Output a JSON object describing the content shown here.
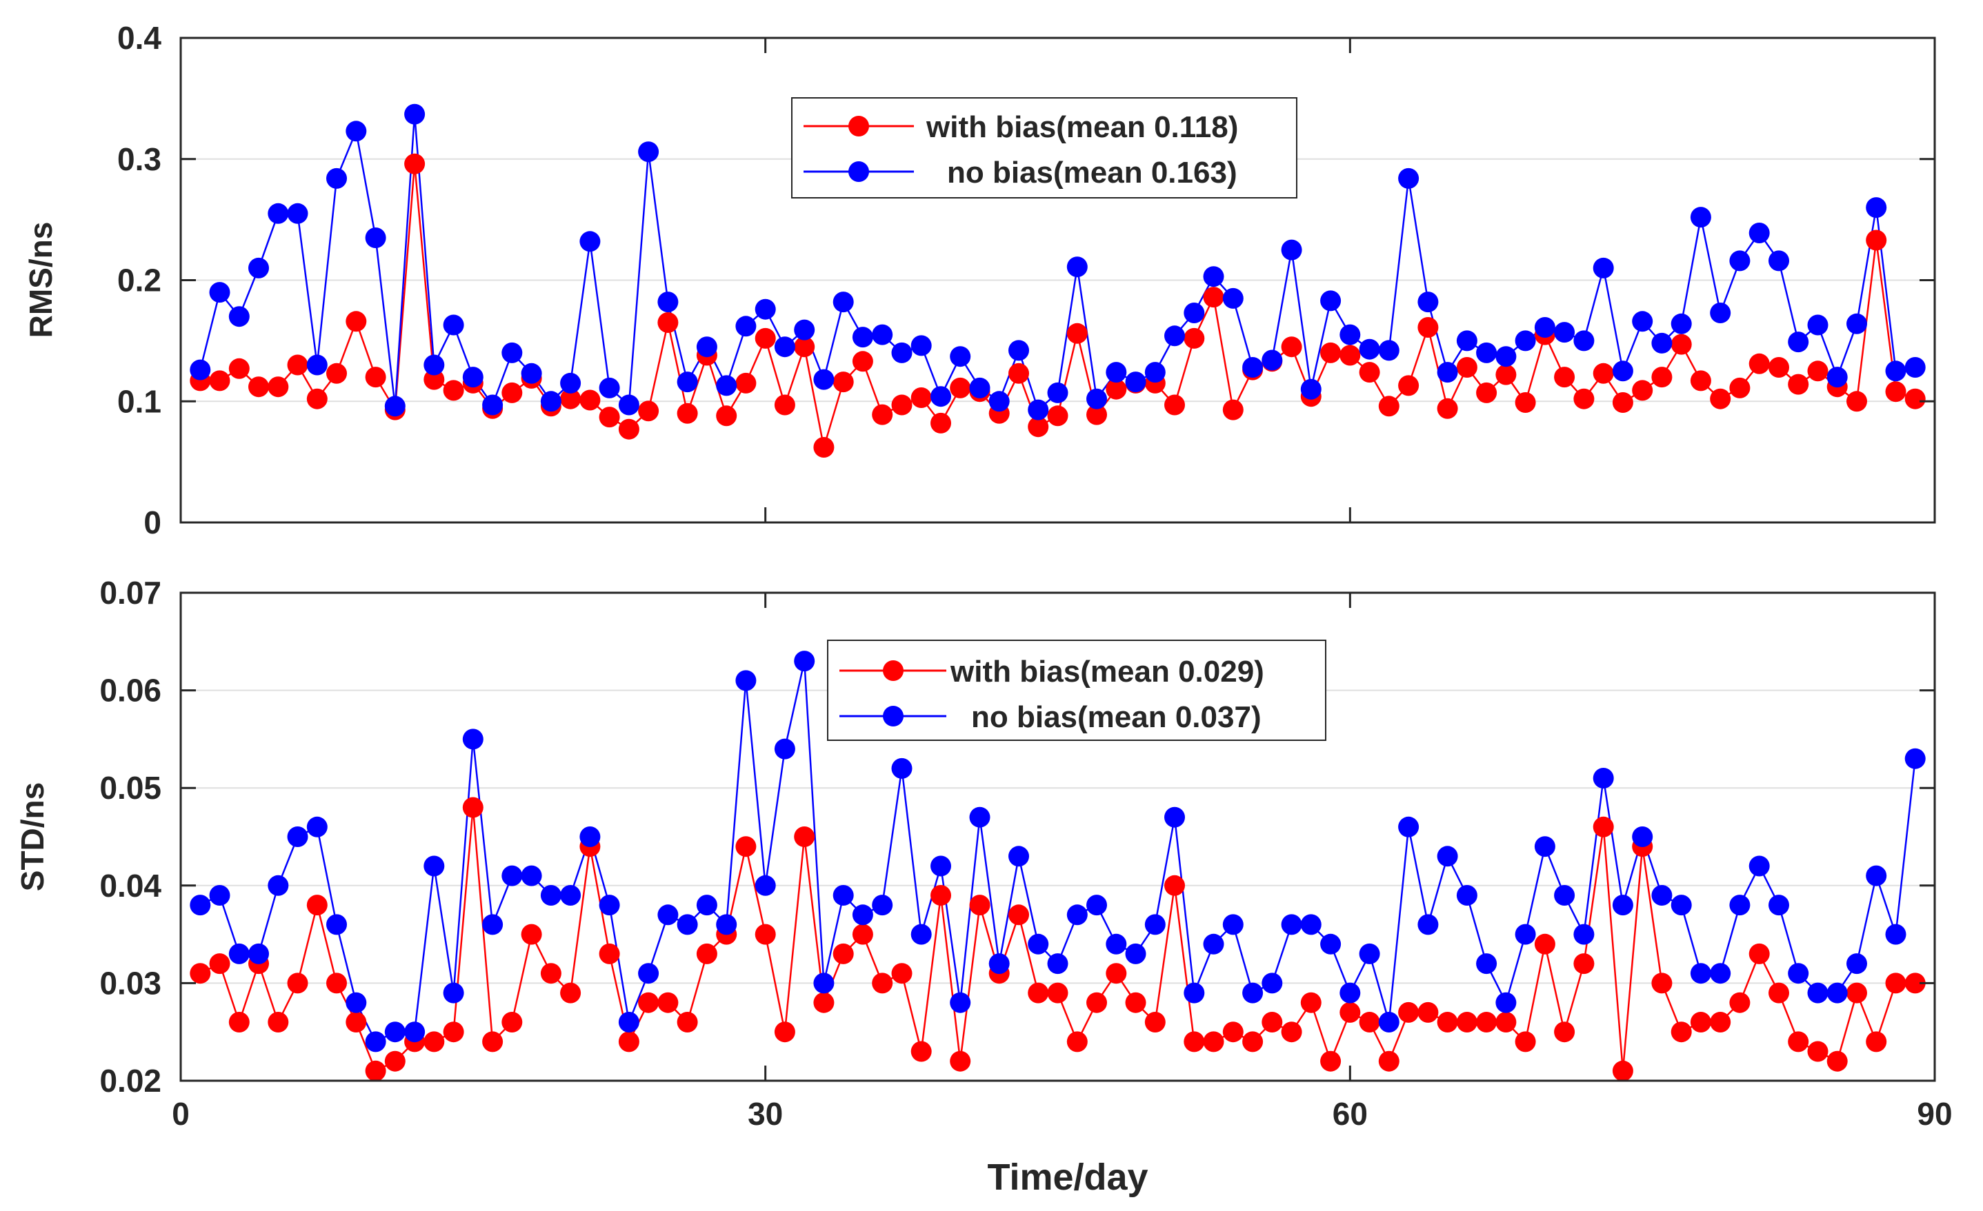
{
  "chart_data": [
    {
      "type": "line",
      "ylabel": "RMS/ns",
      "xlabel": "",
      "xlim": [
        0,
        90
      ],
      "ylim": [
        0,
        0.4
      ],
      "xticks": [
        0,
        30,
        60,
        90
      ],
      "yticks": [
        0,
        0.1,
        0.2,
        0.3,
        0.4
      ],
      "xtick_labels": [
        "",
        "",
        "",
        ""
      ],
      "ytick_labels": [
        "0",
        "0.1",
        "0.2",
        "0.3",
        "0.4"
      ],
      "grid": true,
      "legend_position": "top-center",
      "x": [
        1,
        2,
        3,
        4,
        5,
        6,
        7,
        8,
        9,
        10,
        11,
        12,
        13,
        14,
        15,
        16,
        17,
        18,
        19,
        20,
        21,
        22,
        23,
        24,
        25,
        26,
        27,
        28,
        29,
        30,
        31,
        32,
        33,
        34,
        35,
        36,
        37,
        38,
        39,
        40,
        41,
        42,
        43,
        44,
        45,
        46,
        47,
        48,
        49,
        50,
        51,
        52,
        53,
        54,
        55,
        56,
        57,
        58,
        59,
        60,
        61,
        62,
        63,
        64,
        65,
        66,
        67,
        68,
        69,
        70,
        71,
        72,
        73,
        74,
        75,
        76,
        77,
        78,
        79,
        80,
        81,
        82,
        83,
        84,
        85,
        86,
        87,
        88,
        89
      ],
      "series": [
        {
          "name": "with bias(mean 0.118)",
          "color": "#ff0000",
          "values": [
            0.117,
            0.117,
            0.127,
            0.112,
            0.112,
            0.13,
            0.102,
            0.123,
            0.166,
            0.12,
            0.093,
            0.296,
            0.118,
            0.109,
            0.115,
            0.094,
            0.107,
            0.119,
            0.096,
            0.102,
            0.101,
            0.087,
            0.077,
            0.092,
            0.165,
            0.09,
            0.138,
            0.088,
            0.115,
            0.152,
            0.097,
            0.145,
            0.062,
            0.116,
            0.133,
            0.089,
            0.097,
            0.103,
            0.082,
            0.111,
            0.108,
            0.09,
            0.123,
            0.079,
            0.088,
            0.156,
            0.089,
            0.11,
            0.115,
            0.115,
            0.097,
            0.152,
            0.186,
            0.093,
            0.126,
            0.133,
            0.145,
            0.104,
            0.14,
            0.138,
            0.124,
            0.096,
            0.113,
            0.161,
            0.094,
            0.128,
            0.107,
            0.122,
            0.099,
            0.155,
            0.12,
            0.102,
            0.123,
            0.099,
            0.109,
            0.12,
            0.147,
            0.117,
            0.102,
            0.111,
            0.131,
            0.128,
            0.114,
            0.125,
            0.112,
            0.1,
            0.233,
            0.108,
            0.102
          ]
        },
        {
          "name": "no bias(mean 0.163)",
          "color": "#0000ff",
          "values": [
            0.126,
            0.19,
            0.17,
            0.21,
            0.255,
            0.255,
            0.13,
            0.284,
            0.323,
            0.235,
            0.096,
            0.337,
            0.13,
            0.163,
            0.12,
            0.097,
            0.14,
            0.123,
            0.1,
            0.115,
            0.232,
            0.111,
            0.097,
            0.306,
            0.182,
            0.116,
            0.145,
            0.113,
            0.162,
            0.176,
            0.145,
            0.159,
            0.118,
            0.182,
            0.153,
            0.155,
            0.14,
            0.146,
            0.104,
            0.137,
            0.111,
            0.1,
            0.142,
            0.093,
            0.107,
            0.211,
            0.102,
            0.124,
            0.116,
            0.124,
            0.154,
            0.173,
            0.203,
            0.185,
            0.128,
            0.134,
            0.225,
            0.11,
            0.183,
            0.155,
            0.143,
            0.142,
            0.284,
            0.182,
            0.124,
            0.15,
            0.14,
            0.137,
            0.15,
            0.161,
            0.157,
            0.15,
            0.21,
            0.125,
            0.166,
            0.148,
            0.164,
            0.252,
            0.173,
            0.216,
            0.239,
            0.216,
            0.149,
            0.163,
            0.12,
            0.164,
            0.26,
            0.125,
            0.128
          ]
        }
      ]
    },
    {
      "type": "line",
      "ylabel": "STD/ns",
      "xlabel": "Time/day",
      "xlim": [
        0,
        90
      ],
      "ylim": [
        0.02,
        0.07
      ],
      "xticks": [
        0,
        30,
        60,
        90
      ],
      "yticks": [
        0.02,
        0.03,
        0.04,
        0.05,
        0.06,
        0.07
      ],
      "xtick_labels": [
        "0",
        "30",
        "60",
        "90"
      ],
      "ytick_labels": [
        "0.02",
        "0.03",
        "0.04",
        "0.05",
        "0.06",
        "0.07"
      ],
      "grid": true,
      "legend_position": "top-center",
      "x": [
        1,
        2,
        3,
        4,
        5,
        6,
        7,
        8,
        9,
        10,
        11,
        12,
        13,
        14,
        15,
        16,
        17,
        18,
        19,
        20,
        21,
        22,
        23,
        24,
        25,
        26,
        27,
        28,
        29,
        30,
        31,
        32,
        33,
        34,
        35,
        36,
        37,
        38,
        39,
        40,
        41,
        42,
        43,
        44,
        45,
        46,
        47,
        48,
        49,
        50,
        51,
        52,
        53,
        54,
        55,
        56,
        57,
        58,
        59,
        60,
        61,
        62,
        63,
        64,
        65,
        66,
        67,
        68,
        69,
        70,
        71,
        72,
        73,
        74,
        75,
        76,
        77,
        78,
        79,
        80,
        81,
        82,
        83,
        84,
        85,
        86,
        87,
        88,
        89
      ],
      "series": [
        {
          "name": "with bias(mean 0.029)",
          "color": "#ff0000",
          "values": [
            0.031,
            0.032,
            0.026,
            0.032,
            0.026,
            0.03,
            0.038,
            0.03,
            0.026,
            0.021,
            0.022,
            0.024,
            0.024,
            0.025,
            0.048,
            0.024,
            0.026,
            0.035,
            0.031,
            0.029,
            0.044,
            0.033,
            0.024,
            0.028,
            0.028,
            0.026,
            0.033,
            0.035,
            0.044,
            0.035,
            0.025,
            0.045,
            0.028,
            0.033,
            0.035,
            0.03,
            0.031,
            0.023,
            0.039,
            0.022,
            0.038,
            0.031,
            0.037,
            0.029,
            0.029,
            0.024,
            0.028,
            0.031,
            0.028,
            0.026,
            0.04,
            0.024,
            0.024,
            0.025,
            0.024,
            0.026,
            0.025,
            0.028,
            0.022,
            0.027,
            0.026,
            0.022,
            0.027,
            0.027,
            0.026,
            0.026,
            0.026,
            0.026,
            0.024,
            0.034,
            0.025,
            0.032,
            0.046,
            0.021,
            0.044,
            0.03,
            0.025,
            0.026,
            0.026,
            0.028,
            0.033,
            0.029,
            0.024,
            0.023,
            0.022,
            0.029,
            0.024,
            0.03,
            0.03
          ]
        },
        {
          "name": "no bias(mean 0.037)",
          "color": "#0000ff",
          "values": [
            0.038,
            0.039,
            0.033,
            0.033,
            0.04,
            0.045,
            0.046,
            0.036,
            0.028,
            0.024,
            0.025,
            0.025,
            0.042,
            0.029,
            0.055,
            0.036,
            0.041,
            0.041,
            0.039,
            0.039,
            0.045,
            0.038,
            0.026,
            0.031,
            0.037,
            0.036,
            0.038,
            0.036,
            0.061,
            0.04,
            0.054,
            0.063,
            0.03,
            0.039,
            0.037,
            0.038,
            0.052,
            0.035,
            0.042,
            0.028,
            0.047,
            0.032,
            0.043,
            0.034,
            0.032,
            0.037,
            0.038,
            0.034,
            0.033,
            0.036,
            0.047,
            0.029,
            0.034,
            0.036,
            0.029,
            0.03,
            0.036,
            0.036,
            0.034,
            0.029,
            0.033,
            0.026,
            0.046,
            0.036,
            0.043,
            0.039,
            0.032,
            0.028,
            0.035,
            0.044,
            0.039,
            0.035,
            0.051,
            0.038,
            0.045,
            0.039,
            0.038,
            0.031,
            0.031,
            0.038,
            0.042,
            0.038,
            0.031,
            0.029,
            0.029,
            0.032,
            0.041,
            0.035,
            0.053
          ]
        }
      ]
    }
  ]
}
